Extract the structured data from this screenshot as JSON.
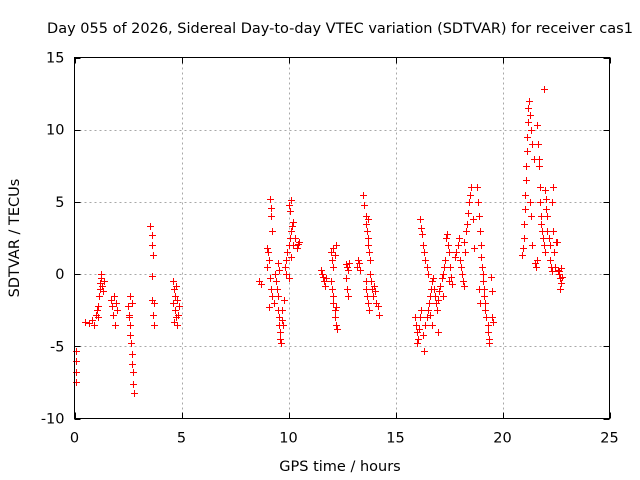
{
  "chart_data": {
    "type": "scatter",
    "title": "Day 055 of 2026, Sidereal Day-to-day VTEC variation (SDTVAR) for receiver cas1",
    "xlabel": "GPS time / hours",
    "ylabel": "SDTVAR / TECUs",
    "xlim": [
      0,
      25
    ],
    "ylim": [
      -10,
      15
    ],
    "xticks": [
      0,
      5,
      10,
      15,
      20,
      25
    ],
    "xtick_labels": [
      "0",
      "5",
      "10",
      "15",
      "20",
      "25"
    ],
    "yticks": [
      -10,
      -5,
      0,
      5,
      10,
      15
    ],
    "ytick_labels": [
      "-10",
      "-5",
      "0",
      "5",
      "10",
      "15"
    ],
    "grid": true,
    "marker": "plus",
    "colors": {
      "series": "#ff0000",
      "axis": "#000000",
      "grid": "#a8a8a8"
    },
    "series": [
      {
        "name": "SDTVAR",
        "points": [
          [
            0.05,
            -5.3
          ],
          [
            0.05,
            -6.0
          ],
          [
            0.07,
            -6.8
          ],
          [
            0.08,
            -7.5
          ],
          [
            0.5,
            -3.3
          ],
          [
            0.7,
            -3.4
          ],
          [
            0.8,
            -3.2
          ],
          [
            0.9,
            -3.5
          ],
          [
            1.0,
            -2.8
          ],
          [
            1.05,
            -2.5
          ],
          [
            1.1,
            -2.2
          ],
          [
            1.15,
            -1.5
          ],
          [
            1.2,
            -1.0
          ],
          [
            1.2,
            -0.6
          ],
          [
            1.25,
            -0.3
          ],
          [
            1.25,
            0.0
          ],
          [
            1.3,
            -0.8
          ],
          [
            1.35,
            -1.2
          ],
          [
            1.4,
            -0.5
          ],
          [
            1.1,
            -3.0
          ],
          [
            1.7,
            -1.8
          ],
          [
            1.75,
            -2.2
          ],
          [
            1.8,
            -2.8
          ],
          [
            1.85,
            -1.5
          ],
          [
            1.9,
            -3.5
          ],
          [
            1.95,
            -2.0
          ],
          [
            2.0,
            -2.5
          ],
          [
            2.5,
            -2.2
          ],
          [
            2.55,
            -2.8
          ],
          [
            2.6,
            -3.5
          ],
          [
            2.6,
            -4.2
          ],
          [
            2.65,
            -4.8
          ],
          [
            2.7,
            -5.5
          ],
          [
            2.7,
            -6.2
          ],
          [
            2.75,
            -6.8
          ],
          [
            2.75,
            -7.6
          ],
          [
            2.8,
            -8.2
          ],
          [
            2.6,
            -1.5
          ],
          [
            2.7,
            -2.0
          ],
          [
            2.55,
            -3.0
          ],
          [
            3.55,
            3.3
          ],
          [
            3.6,
            2.7
          ],
          [
            3.6,
            2.0
          ],
          [
            3.65,
            1.3
          ],
          [
            3.6,
            -0.1
          ],
          [
            3.6,
            -1.8
          ],
          [
            3.65,
            -2.8
          ],
          [
            3.7,
            -3.5
          ],
          [
            3.7,
            -2.0
          ],
          [
            4.6,
            -0.5
          ],
          [
            4.65,
            -1.0
          ],
          [
            4.7,
            -1.5
          ],
          [
            4.6,
            -2.0
          ],
          [
            4.7,
            -2.5
          ],
          [
            4.75,
            -3.0
          ],
          [
            4.8,
            -3.5
          ],
          [
            4.85,
            -2.8
          ],
          [
            4.9,
            -2.2
          ],
          [
            4.75,
            -0.8
          ],
          [
            4.65,
            -3.3
          ],
          [
            4.8,
            -1.8
          ],
          [
            8.6,
            -0.5
          ],
          [
            8.7,
            -0.7
          ],
          [
            9.0,
            1.8
          ],
          [
            9.05,
            1.5
          ],
          [
            9.1,
            1.0
          ],
          [
            9.0,
            0.5
          ],
          [
            9.15,
            5.2
          ],
          [
            9.2,
            4.6
          ],
          [
            9.2,
            4.0
          ],
          [
            9.25,
            3.0
          ],
          [
            9.15,
            -0.3
          ],
          [
            9.2,
            -1.0
          ],
          [
            9.25,
            -1.5
          ],
          [
            9.3,
            -2.0
          ],
          [
            9.1,
            -2.3
          ],
          [
            9.35,
            0.0
          ],
          [
            9.4,
            -0.5
          ],
          [
            9.45,
            -1.0
          ],
          [
            9.5,
            -1.5
          ],
          [
            9.5,
            -2.5
          ],
          [
            9.55,
            -3.0
          ],
          [
            9.55,
            -3.5
          ],
          [
            9.6,
            -4.0
          ],
          [
            9.6,
            -4.5
          ],
          [
            9.65,
            -4.8
          ],
          [
            9.5,
            0.8
          ],
          [
            9.55,
            0.3
          ],
          [
            9.7,
            -3.2
          ],
          [
            9.75,
            -3.5
          ],
          [
            9.7,
            -2.5
          ],
          [
            9.8,
            -1.8
          ],
          [
            9.85,
            0.5
          ],
          [
            9.9,
            1.0
          ],
          [
            9.95,
            1.5
          ],
          [
            10.0,
            2.0
          ],
          [
            10.05,
            2.5
          ],
          [
            10.1,
            3.0
          ],
          [
            10.15,
            3.3
          ],
          [
            10.2,
            3.6
          ],
          [
            10.0,
            4.8
          ],
          [
            10.05,
            4.4
          ],
          [
            10.1,
            5.1
          ],
          [
            9.9,
            0.0
          ],
          [
            10.0,
            -0.3
          ],
          [
            10.1,
            1.2
          ],
          [
            10.2,
            2.0
          ],
          [
            10.3,
            2.5
          ],
          [
            10.4,
            1.8
          ],
          [
            10.45,
            2.1
          ],
          [
            10.5,
            2.2
          ],
          [
            11.5,
            0.3
          ],
          [
            11.55,
            0.0
          ],
          [
            11.6,
            -0.2
          ],
          [
            11.65,
            -0.5
          ],
          [
            11.7,
            -0.8
          ],
          [
            11.75,
            -0.3
          ],
          [
            12.0,
            1.5
          ],
          [
            12.05,
            1.0
          ],
          [
            12.1,
            0.5
          ],
          [
            12.1,
            1.8
          ],
          [
            12.15,
            1.3
          ],
          [
            12.2,
            2.0
          ],
          [
            12.0,
            -0.5
          ],
          [
            12.05,
            -1.0
          ],
          [
            12.1,
            -1.5
          ],
          [
            12.1,
            -2.0
          ],
          [
            12.15,
            -2.5
          ],
          [
            12.15,
            -3.0
          ],
          [
            12.2,
            -3.5
          ],
          [
            12.25,
            -3.8
          ],
          [
            12.2,
            -2.3
          ],
          [
            12.7,
            0.7
          ],
          [
            12.75,
            0.5
          ],
          [
            12.8,
            0.3
          ],
          [
            12.7,
            -0.3
          ],
          [
            12.75,
            -1.0
          ],
          [
            12.8,
            -1.5
          ],
          [
            12.85,
            0.8
          ],
          [
            13.2,
            0.5
          ],
          [
            13.25,
            1.0
          ],
          [
            13.3,
            0.8
          ],
          [
            13.35,
            0.3
          ],
          [
            13.5,
            5.5
          ],
          [
            13.55,
            4.8
          ],
          [
            13.6,
            4.0
          ],
          [
            13.6,
            3.5
          ],
          [
            13.65,
            3.0
          ],
          [
            13.7,
            2.5
          ],
          [
            13.7,
            2.0
          ],
          [
            13.75,
            1.5
          ],
          [
            13.8,
            1.0
          ],
          [
            13.6,
            -1.0
          ],
          [
            13.65,
            -1.5
          ],
          [
            13.7,
            -2.0
          ],
          [
            13.75,
            -2.5
          ],
          [
            13.6,
            -0.5
          ],
          [
            13.8,
            0.0
          ],
          [
            13.85,
            -0.5
          ],
          [
            13.9,
            -1.0
          ],
          [
            13.95,
            -1.5
          ],
          [
            14.0,
            -0.8
          ],
          [
            14.05,
            -1.2
          ],
          [
            14.1,
            -2.0
          ],
          [
            14.2,
            -2.2
          ],
          [
            14.25,
            -2.8
          ],
          [
            13.7,
            3.8
          ],
          [
            15.9,
            -3.0
          ],
          [
            15.95,
            -3.5
          ],
          [
            16.0,
            -4.0
          ],
          [
            16.05,
            -4.5
          ],
          [
            16.0,
            -4.8
          ],
          [
            16.1,
            -3.8
          ],
          [
            16.15,
            -3.0
          ],
          [
            16.2,
            -2.5
          ],
          [
            16.15,
            3.8
          ],
          [
            16.2,
            3.2
          ],
          [
            16.25,
            2.8
          ],
          [
            16.3,
            2.0
          ],
          [
            16.35,
            1.5
          ],
          [
            16.4,
            1.0
          ],
          [
            16.45,
            0.5
          ],
          [
            16.5,
            0.0
          ],
          [
            16.3,
            -4.2
          ],
          [
            16.35,
            -5.3
          ],
          [
            16.4,
            -3.5
          ],
          [
            16.45,
            -3.0
          ],
          [
            16.5,
            -2.5
          ],
          [
            16.55,
            -2.0
          ],
          [
            16.6,
            -1.5
          ],
          [
            16.65,
            -1.0
          ],
          [
            16.7,
            -0.5
          ],
          [
            16.75,
            -0.3
          ],
          [
            16.8,
            -1.0
          ],
          [
            16.85,
            -1.5
          ],
          [
            16.9,
            -2.0
          ],
          [
            16.95,
            -2.5
          ],
          [
            17.0,
            -1.8
          ],
          [
            17.05,
            -1.2
          ],
          [
            17.1,
            -0.8
          ],
          [
            17.15,
            -0.3
          ],
          [
            17.2,
            0.0
          ],
          [
            17.25,
            0.5
          ],
          [
            17.3,
            1.0
          ],
          [
            17.35,
            2.5
          ],
          [
            17.4,
            2.8
          ],
          [
            17.45,
            2.0
          ],
          [
            17.5,
            1.5
          ],
          [
            17.55,
            0.5
          ],
          [
            17.6,
            -0.2
          ],
          [
            17.65,
            -0.7
          ],
          [
            17.0,
            -4.0
          ],
          [
            16.7,
            -3.5
          ],
          [
            16.6,
            -2.8
          ],
          [
            17.2,
            -1.5
          ],
          [
            17.5,
            -0.5
          ],
          [
            17.8,
            1.2
          ],
          [
            17.85,
            1.5
          ],
          [
            17.9,
            2.0
          ],
          [
            17.95,
            2.5
          ],
          [
            18.0,
            1.0
          ],
          [
            18.05,
            0.5
          ],
          [
            18.1,
            0.0
          ],
          [
            18.15,
            -0.5
          ],
          [
            18.2,
            -0.8
          ],
          [
            18.3,
            3.0
          ],
          [
            18.35,
            3.5
          ],
          [
            18.4,
            4.2
          ],
          [
            18.45,
            5.0
          ],
          [
            18.5,
            5.5
          ],
          [
            18.55,
            6.0
          ],
          [
            18.6,
            3.8
          ],
          [
            18.65,
            1.8
          ],
          [
            18.25,
            1.5
          ],
          [
            18.2,
            2.2
          ],
          [
            18.8,
            6.0
          ],
          [
            18.85,
            5.0
          ],
          [
            18.9,
            4.0
          ],
          [
            18.95,
            3.0
          ],
          [
            19.0,
            2.0
          ],
          [
            19.0,
            1.2
          ],
          [
            19.05,
            0.5
          ],
          [
            19.1,
            0.0
          ],
          [
            19.1,
            -0.5
          ],
          [
            19.15,
            -1.0
          ],
          [
            19.15,
            -1.5
          ],
          [
            19.2,
            -2.0
          ],
          [
            19.2,
            -2.5
          ],
          [
            19.25,
            -3.0
          ],
          [
            19.3,
            -3.5
          ],
          [
            19.3,
            -4.0
          ],
          [
            19.35,
            -4.5
          ],
          [
            19.35,
            -4.8
          ],
          [
            18.9,
            -1.0
          ],
          [
            18.95,
            -2.0
          ],
          [
            19.5,
            -3.0
          ],
          [
            19.55,
            -3.3
          ],
          [
            19.5,
            -1.2
          ],
          [
            19.45,
            -0.2
          ],
          [
            20.9,
            1.3
          ],
          [
            20.95,
            1.8
          ],
          [
            21.0,
            2.5
          ],
          [
            21.0,
            3.5
          ],
          [
            21.05,
            4.5
          ],
          [
            21.05,
            5.5
          ],
          [
            21.1,
            6.5
          ],
          [
            21.1,
            7.5
          ],
          [
            21.15,
            8.5
          ],
          [
            21.15,
            9.5
          ],
          [
            21.2,
            10.5
          ],
          [
            21.2,
            11.5
          ],
          [
            21.25,
            12.0
          ],
          [
            21.3,
            11.0
          ],
          [
            21.35,
            10.0
          ],
          [
            21.4,
            9.0
          ],
          [
            21.45,
            8.0
          ],
          [
            21.3,
            5.0
          ],
          [
            21.35,
            4.0
          ],
          [
            21.4,
            2.0
          ],
          [
            21.5,
            0.8
          ],
          [
            21.55,
            0.5
          ],
          [
            21.6,
            1.0
          ],
          [
            21.6,
            10.3
          ],
          [
            21.65,
            9.0
          ],
          [
            21.7,
            8.0
          ],
          [
            21.7,
            7.5
          ],
          [
            21.75,
            6.0
          ],
          [
            21.75,
            5.0
          ],
          [
            21.8,
            4.0
          ],
          [
            21.8,
            3.5
          ],
          [
            21.85,
            3.0
          ],
          [
            21.9,
            2.5
          ],
          [
            21.95,
            12.8
          ],
          [
            21.95,
            2.0
          ],
          [
            22.0,
            1.5
          ],
          [
            22.0,
            5.8
          ],
          [
            22.05,
            5.2
          ],
          [
            22.05,
            4.5
          ],
          [
            22.1,
            3.0
          ],
          [
            22.15,
            2.5
          ],
          [
            22.2,
            2.0
          ],
          [
            22.1,
            4.0
          ],
          [
            22.2,
            1.0
          ],
          [
            22.25,
            0.5
          ],
          [
            22.3,
            0.2
          ],
          [
            22.35,
            3.0
          ],
          [
            22.3,
            5.0
          ],
          [
            22.35,
            6.0
          ],
          [
            22.4,
            1.5
          ],
          [
            22.45,
            0.5
          ],
          [
            22.5,
            2.2
          ],
          [
            22.55,
            2.2
          ],
          [
            22.6,
            0.3
          ],
          [
            22.65,
            0.0
          ],
          [
            22.7,
            -0.3
          ],
          [
            22.75,
            -0.6
          ],
          [
            22.8,
            -0.2
          ],
          [
            22.7,
            -1.0
          ],
          [
            22.65,
            0.2
          ],
          [
            22.75,
            0.4
          ]
        ]
      }
    ]
  }
}
